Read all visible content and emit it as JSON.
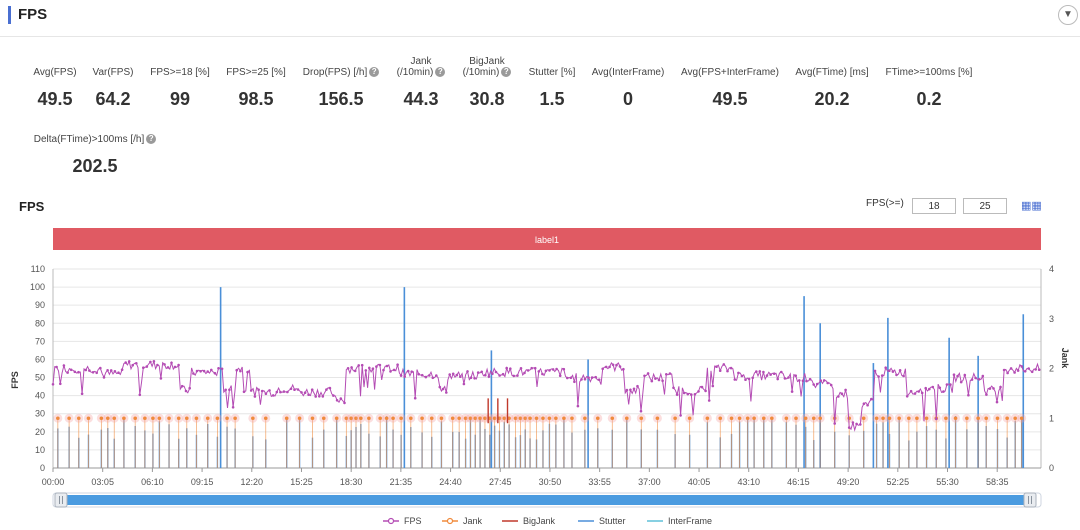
{
  "header": {
    "title": "FPS",
    "collapse_icon": "chevron-down-icon"
  },
  "metrics": [
    {
      "key": "avg_fps",
      "label": "Avg(FPS)",
      "value": "49.5",
      "help": false
    },
    {
      "key": "var_fps",
      "label": "Var(FPS)",
      "value": "64.2",
      "help": false
    },
    {
      "key": "fps_ge_18",
      "label": "FPS>=18 [%]",
      "value": "99",
      "help": false
    },
    {
      "key": "fps_ge_25",
      "label": "FPS>=25 [%]",
      "value": "98.5",
      "help": false
    },
    {
      "key": "drop_fps",
      "label": "Drop(FPS) [/h]",
      "value": "156.5",
      "help": true
    },
    {
      "key": "jank",
      "label": "Jank",
      "label2": "(/10min)",
      "value": "44.3",
      "help": true
    },
    {
      "key": "bigjank",
      "label": "BigJank",
      "label2": "(/10min)",
      "value": "30.8",
      "help": true
    },
    {
      "key": "stutter",
      "label": "Stutter [%]",
      "value": "1.5",
      "help": false
    },
    {
      "key": "avg_interframe",
      "label": "Avg(InterFrame)",
      "value": "0",
      "help": false
    },
    {
      "key": "avg_fps_interframe",
      "label": "Avg(FPS+InterFrame)",
      "value": "49.5",
      "help": false
    },
    {
      "key": "avg_ftime",
      "label": "Avg(FTime) [ms]",
      "value": "20.2",
      "help": false
    },
    {
      "key": "ftime_ge_100",
      "label": "FTime>=100ms [%]",
      "value": "0.2",
      "help": false
    },
    {
      "key": "delta_ftime",
      "label": "Delta(FTime)>100ms [/h]",
      "value": "202.5",
      "help": true
    }
  ],
  "chart_panel": {
    "title": "FPS",
    "filter_label": "FPS(>=)",
    "filter_low": "18",
    "filter_high": "25",
    "grid_icon": "table-icon",
    "band_label": "label1"
  },
  "chart_data": {
    "type": "line",
    "x_ticks": [
      "00:00",
      "03:05",
      "06:10",
      "09:15",
      "12:20",
      "15:25",
      "18:30",
      "21:35",
      "24:40",
      "27:45",
      "30:50",
      "33:55",
      "37:00",
      "40:05",
      "43:10",
      "46:15",
      "49:20",
      "52:25",
      "55:30",
      "58:35"
    ],
    "y_left_ticks": [
      "0",
      "10",
      "20",
      "30",
      "40",
      "50",
      "60",
      "70",
      "80",
      "90",
      "100",
      "110"
    ],
    "y_left_label": "FPS",
    "ylim_left": [
      0,
      110
    ],
    "y_right_ticks": [
      "0",
      "1",
      "2",
      "3",
      "4"
    ],
    "y_right_label": "Jank",
    "ylim_right": [
      0,
      4
    ],
    "legend": [
      {
        "name": "FPS",
        "color": "#b44cb4",
        "marker": "circle"
      },
      {
        "name": "Jank",
        "color": "#f08a3c",
        "marker": "circle"
      },
      {
        "name": "BigJank",
        "color": "#c0392b",
        "marker": "none"
      },
      {
        "name": "Stutter",
        "color": "#4a8fd8",
        "marker": "none"
      },
      {
        "name": "InterFrame",
        "color": "#5fc0d8",
        "marker": "none"
      }
    ],
    "series": [
      {
        "name": "FPS",
        "axis": "left",
        "segments": [
          {
            "x": [
              0.0,
              3.05
            ],
            "y": 55
          },
          {
            "x": [
              3.05,
              4.4
            ],
            "y": 52
          },
          {
            "x": [
              4.4,
              7.9
            ],
            "y": 57
          },
          {
            "x": [
              7.9,
              8.6
            ],
            "y": 43
          },
          {
            "x": [
              8.6,
              10.6
            ],
            "y": 53
          },
          {
            "x": [
              10.6,
              11.4
            ],
            "y": 44
          },
          {
            "x": [
              11.4,
              12.3
            ],
            "y": 55
          },
          {
            "x": [
              12.3,
              14.0
            ],
            "y": 42
          },
          {
            "x": [
              14.0,
              15.2
            ],
            "y": 44
          },
          {
            "x": [
              15.2,
              17.4
            ],
            "y": 42
          },
          {
            "x": [
              17.4,
              18.2
            ],
            "y": 38
          },
          {
            "x": [
              18.2,
              21.6
            ],
            "y": 55
          },
          {
            "x": [
              21.6,
              24.0
            ],
            "y": 52
          },
          {
            "x": [
              24.0,
              24.5
            ],
            "y": 43
          },
          {
            "x": [
              24.5,
              26.6
            ],
            "y": 51
          },
          {
            "x": [
              26.6,
              31.8
            ],
            "y": 53
          },
          {
            "x": [
              31.8,
              34.0
            ],
            "y": 50
          },
          {
            "x": [
              34.0,
              35.5
            ],
            "y": 56
          },
          {
            "x": [
              35.5,
              36.7
            ],
            "y": 43
          },
          {
            "x": [
              36.7,
              38.5
            ],
            "y": 50
          },
          {
            "x": [
              38.5,
              40.6
            ],
            "y": 43
          },
          {
            "x": [
              40.6,
              42.3
            ],
            "y": 55
          },
          {
            "x": [
              42.3,
              45.3
            ],
            "y": 51
          },
          {
            "x": [
              45.3,
              47.2
            ],
            "y": 50
          },
          {
            "x": [
              47.2,
              48.5
            ],
            "y": 46
          },
          {
            "x": [
              48.5,
              49.4
            ],
            "y": 41
          },
          {
            "x": [
              49.4,
              50.2
            ],
            "y": 23
          },
          {
            "x": [
              50.2,
              51.0
            ],
            "y": 36
          },
          {
            "x": [
              51.0,
              53.0
            ],
            "y": 53
          },
          {
            "x": [
              53.0,
              53.6
            ],
            "y": 42
          },
          {
            "x": [
              53.6,
              55.9
            ],
            "y": 44
          },
          {
            "x": [
              55.9,
              57.8
            ],
            "y": 50
          },
          {
            "x": [
              57.8,
              58.9
            ],
            "y": 43
          },
          {
            "x": [
              58.9,
              61.3
            ],
            "y": 55
          }
        ]
      },
      {
        "name": "Jank",
        "axis": "right",
        "times": [
          0.3,
          1.0,
          1.6,
          2.2,
          3.0,
          3.4,
          3.8,
          4.4,
          5.1,
          5.7,
          6.2,
          6.6,
          7.2,
          7.8,
          8.3,
          8.9,
          9.6,
          10.2,
          10.8,
          11.3,
          12.4,
          13.2,
          14.5,
          15.3,
          16.1,
          16.8,
          17.6,
          18.2,
          18.5,
          18.8,
          19.1,
          19.6,
          20.3,
          20.7,
          21.1,
          21.6,
          22.2,
          22.9,
          23.5,
          24.1,
          24.8,
          25.2,
          25.6,
          25.9,
          26.2,
          26.5,
          26.8,
          27.1,
          27.4,
          27.7,
          28.0,
          28.3,
          28.7,
          29.0,
          29.3,
          29.6,
          30.0,
          30.4,
          30.8,
          31.2,
          31.7,
          32.2,
          33.0,
          33.8,
          34.7,
          35.6,
          36.5,
          37.5,
          38.6,
          39.5,
          40.6,
          41.4,
          42.1,
          42.6,
          43.1,
          43.5,
          44.1,
          44.6,
          45.5,
          46.1,
          46.7,
          47.2,
          47.6,
          48.5,
          49.4,
          50.3,
          51.1,
          51.5,
          51.9,
          52.5,
          53.1,
          53.6,
          54.2,
          54.8,
          55.4,
          56.0,
          56.7,
          57.4,
          57.9,
          58.6,
          59.2,
          59.7,
          60.1
        ],
        "value": 1
      },
      {
        "name": "Stutter",
        "axis": "right",
        "times": [
          0.3,
          1.0,
          1.6,
          2.2,
          3.0,
          3.4,
          3.8,
          4.4,
          5.1,
          5.7,
          6.2,
          6.6,
          7.2,
          7.8,
          8.3,
          8.9,
          9.6,
          10.2,
          10.8,
          11.3,
          12.4,
          13.2,
          14.5,
          15.3,
          16.1,
          16.8,
          17.6,
          18.2,
          18.5,
          18.8,
          19.1,
          19.6,
          20.3,
          20.7,
          21.1,
          21.6,
          22.2,
          22.9,
          23.5,
          24.1,
          24.8,
          25.2,
          25.6,
          25.9,
          26.2,
          26.5,
          26.8,
          27.1,
          27.4,
          27.7,
          28.0,
          28.3,
          28.7,
          29.0,
          29.3,
          29.6,
          30.0,
          30.4,
          30.8,
          31.2,
          31.7,
          32.2,
          33.0,
          33.8,
          34.7,
          35.6,
          36.5,
          37.5,
          38.6,
          39.5,
          40.6,
          41.4,
          42.1,
          42.6,
          43.1,
          43.5,
          44.1,
          44.6,
          45.5,
          46.1,
          46.7,
          47.2,
          47.6,
          48.5,
          49.4,
          50.3,
          51.1,
          51.5,
          51.9,
          52.5,
          53.1,
          53.6,
          54.2,
          54.8,
          55.4,
          56.0,
          56.7,
          57.4,
          57.9,
          58.6,
          59.2,
          59.7,
          60.1
        ],
        "spikes": [
          {
            "t": 10.4,
            "fps": 100
          },
          {
            "t": 21.8,
            "fps": 100
          },
          {
            "t": 27.2,
            "fps": 65
          },
          {
            "t": 33.2,
            "fps": 60
          },
          {
            "t": 46.6,
            "fps": 95
          },
          {
            "t": 47.6,
            "fps": 80
          },
          {
            "t": 50.9,
            "fps": 58
          },
          {
            "t": 51.8,
            "fps": 83
          },
          {
            "t": 55.6,
            "fps": 72
          },
          {
            "t": 57.4,
            "fps": 62
          },
          {
            "t": 60.2,
            "fps": 85
          }
        ]
      },
      {
        "name": "BigJank",
        "axis": "right",
        "times": [
          27.0,
          27.6,
          28.2
        ],
        "value": 1.1
      }
    ]
  }
}
